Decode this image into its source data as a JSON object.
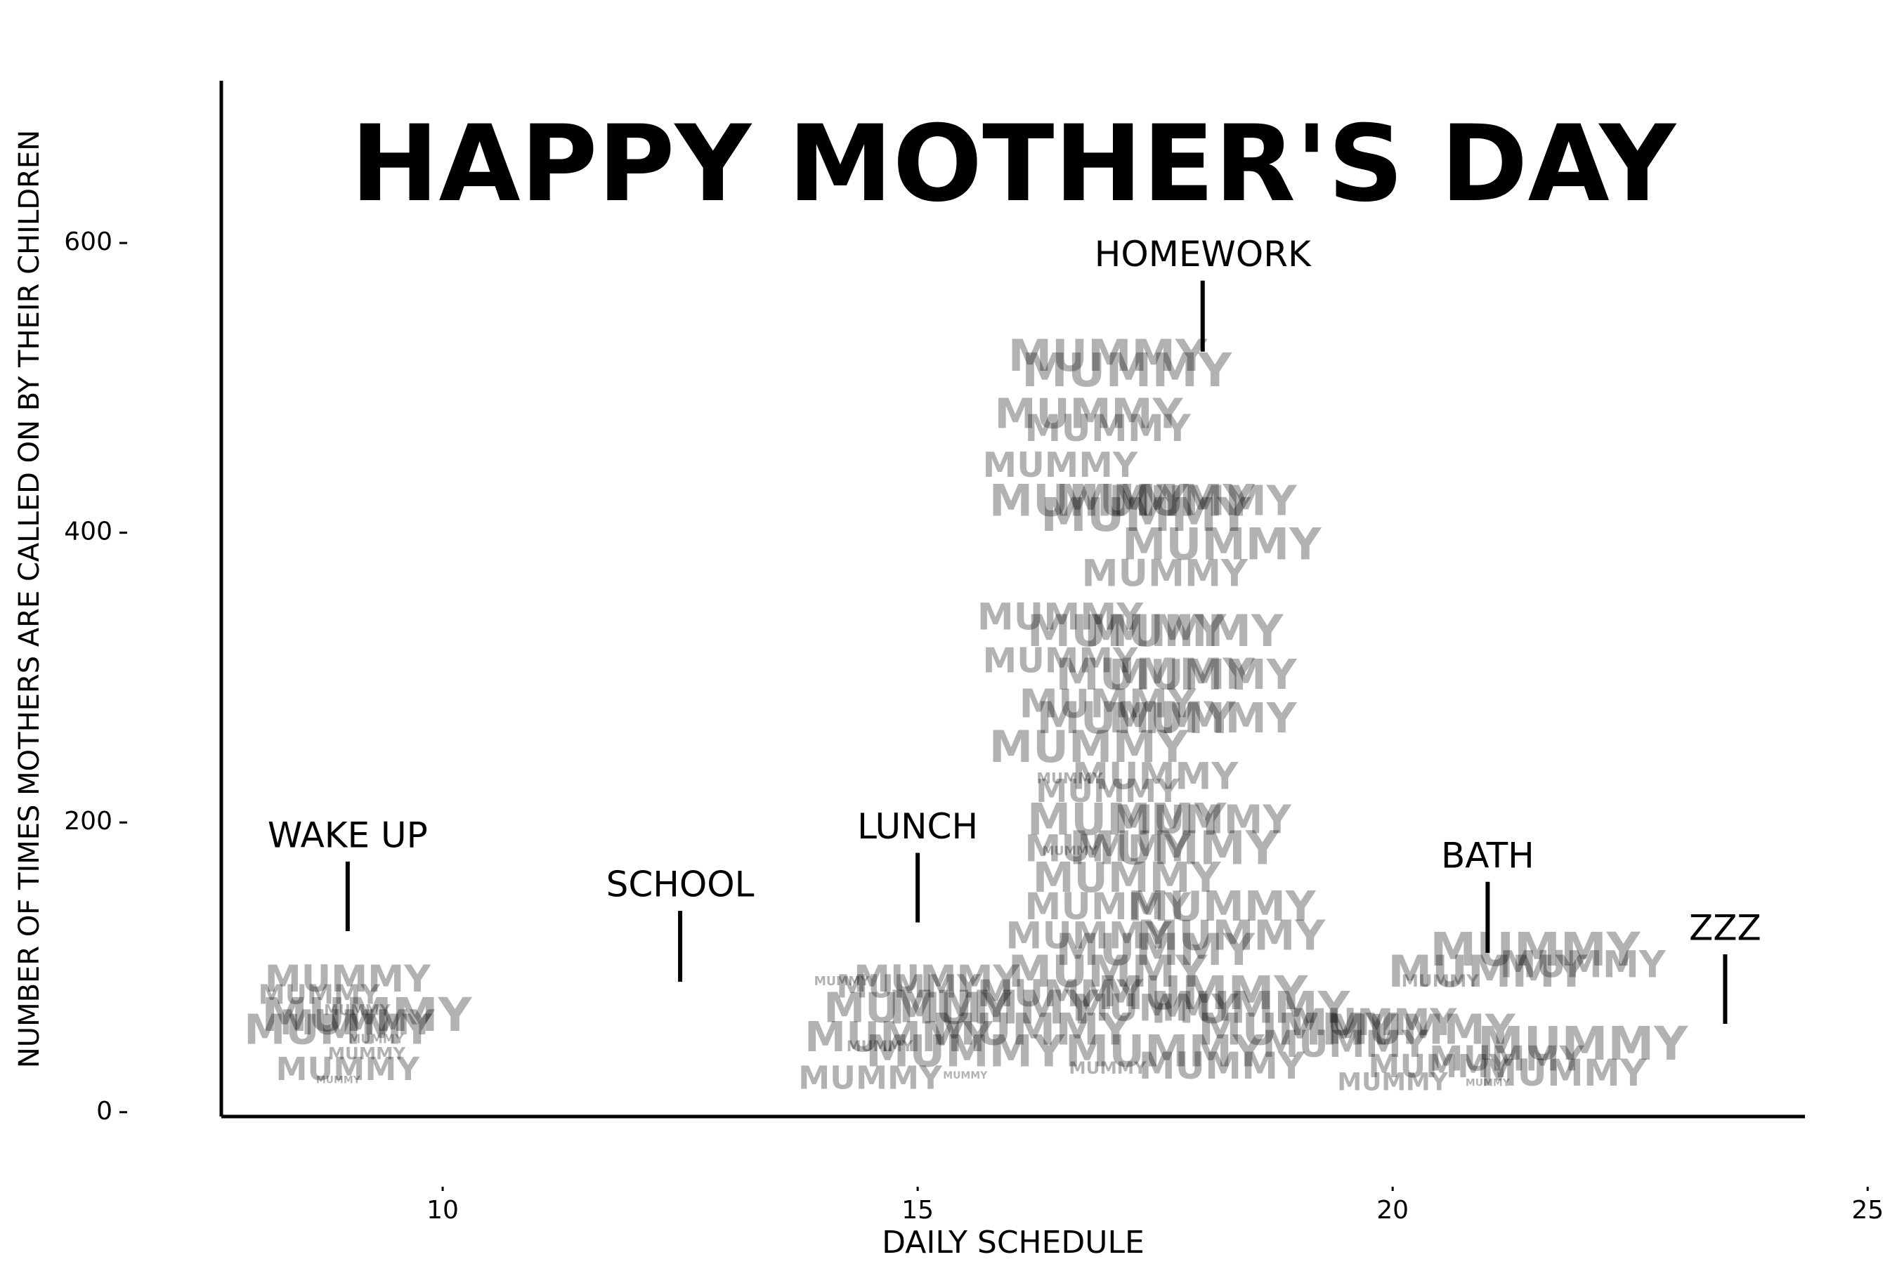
{
  "chart_data": {
    "type": "scatter",
    "title": "HAPPY MOTHER'S DAY",
    "x_label": "DAILY SCHEDULE",
    "y_label": "NUMBER OF TIMES MOTHERS ARE CALLED ON BY THEIR CHILDREN",
    "marker_text": "MUMMY",
    "color": "#000000",
    "alpha": 0.3,
    "xlim": [
      7.67,
      24.34
    ],
    "ylim": [
      -3,
      712
    ],
    "xticks": [
      10,
      15,
      20,
      25
    ],
    "yticks": [
      0,
      200,
      400,
      600
    ],
    "x": [
      9.0,
      9.2,
      8.9,
      8.7,
      9.1,
      9.3,
      9.0,
      8.9,
      9.2,
      9.1,
      14.5,
      14.8,
      14.2,
      14.9,
      15.2,
      15.5,
      15.0,
      14.6,
      15.5,
      15.8,
      16.2,
      17.0,
      17.2,
      16.8,
      17.0,
      16.5,
      16.8,
      17.5,
      18.0,
      17.4,
      18.2,
      17.6,
      16.5,
      17.2,
      17.8,
      16.5,
      17.5,
      18.0,
      17.0,
      17.3,
      18.0,
      16.8,
      17.5,
      17.0,
      16.6,
      17.2,
      18.0,
      17.0,
      17.7,
      16.6,
      17.2,
      18.2,
      17.0,
      16.8,
      17.5,
      18.3,
      17.0,
      18.0,
      17.5,
      16.5,
      18.5,
      17.6,
      18.2,
      17.0,
      19.0,
      19.5,
      19.8,
      20.3,
      21.5,
      22.0,
      21.0,
      20.5,
      22.0,
      21.8,
      20.5,
      21.2,
      21.0,
      20.0
    ],
    "values": [
      90,
      65,
      55,
      80,
      70,
      50,
      28,
      22,
      40,
      60,
      22,
      50,
      90,
      85,
      90,
      40,
      70,
      45,
      25,
      70,
      55,
      520,
      510,
      480,
      470,
      445,
      420,
      420,
      420,
      410,
      390,
      370,
      340,
      330,
      330,
      310,
      300,
      300,
      280,
      270,
      270,
      250,
      230,
      220,
      230,
      200,
      200,
      180,
      180,
      180,
      160,
      140,
      140,
      120,
      110,
      120,
      95,
      80,
      70,
      80,
      70,
      40,
      30,
      30,
      55,
      45,
      60,
      55,
      110,
      100,
      95,
      90,
      45,
      25,
      30,
      35,
      20,
      20
    ],
    "sizes": [
      30,
      38,
      34,
      22,
      12,
      10,
      26,
      8,
      14,
      28,
      26,
      34,
      10,
      26,
      30,
      36,
      34,
      12,
      8,
      38,
      36,
      36,
      38,
      34,
      30,
      28,
      36,
      36,
      34,
      38,
      36,
      30,
      30,
      36,
      36,
      28,
      36,
      34,
      32,
      36,
      34,
      36,
      30,
      26,
      12,
      36,
      32,
      30,
      38,
      10,
      34,
      34,
      30,
      30,
      36,
      34,
      36,
      38,
      30,
      30,
      36,
      36,
      30,
      14,
      36,
      30,
      30,
      34,
      38,
      30,
      36,
      14,
      38,
      30,
      26,
      28,
      8,
      20
    ],
    "annotations": [
      {
        "text": "WAKE UP",
        "x": 9,
        "y_start": 125,
        "y_end": 173
      },
      {
        "text": "SCHOOL",
        "x": 12.5,
        "y_start": 90,
        "y_end": 139
      },
      {
        "text": "LUNCH",
        "x": 15,
        "y_start": 131,
        "y_end": 179
      },
      {
        "text": "HOMEWORK",
        "x": 18,
        "y_start": 525,
        "y_end": 574
      },
      {
        "text": "BATH",
        "x": 21,
        "y_start": 110,
        "y_end": 159
      },
      {
        "text": "ZZZ",
        "x": 23.5,
        "y_start": 61,
        "y_end": 109
      }
    ]
  }
}
